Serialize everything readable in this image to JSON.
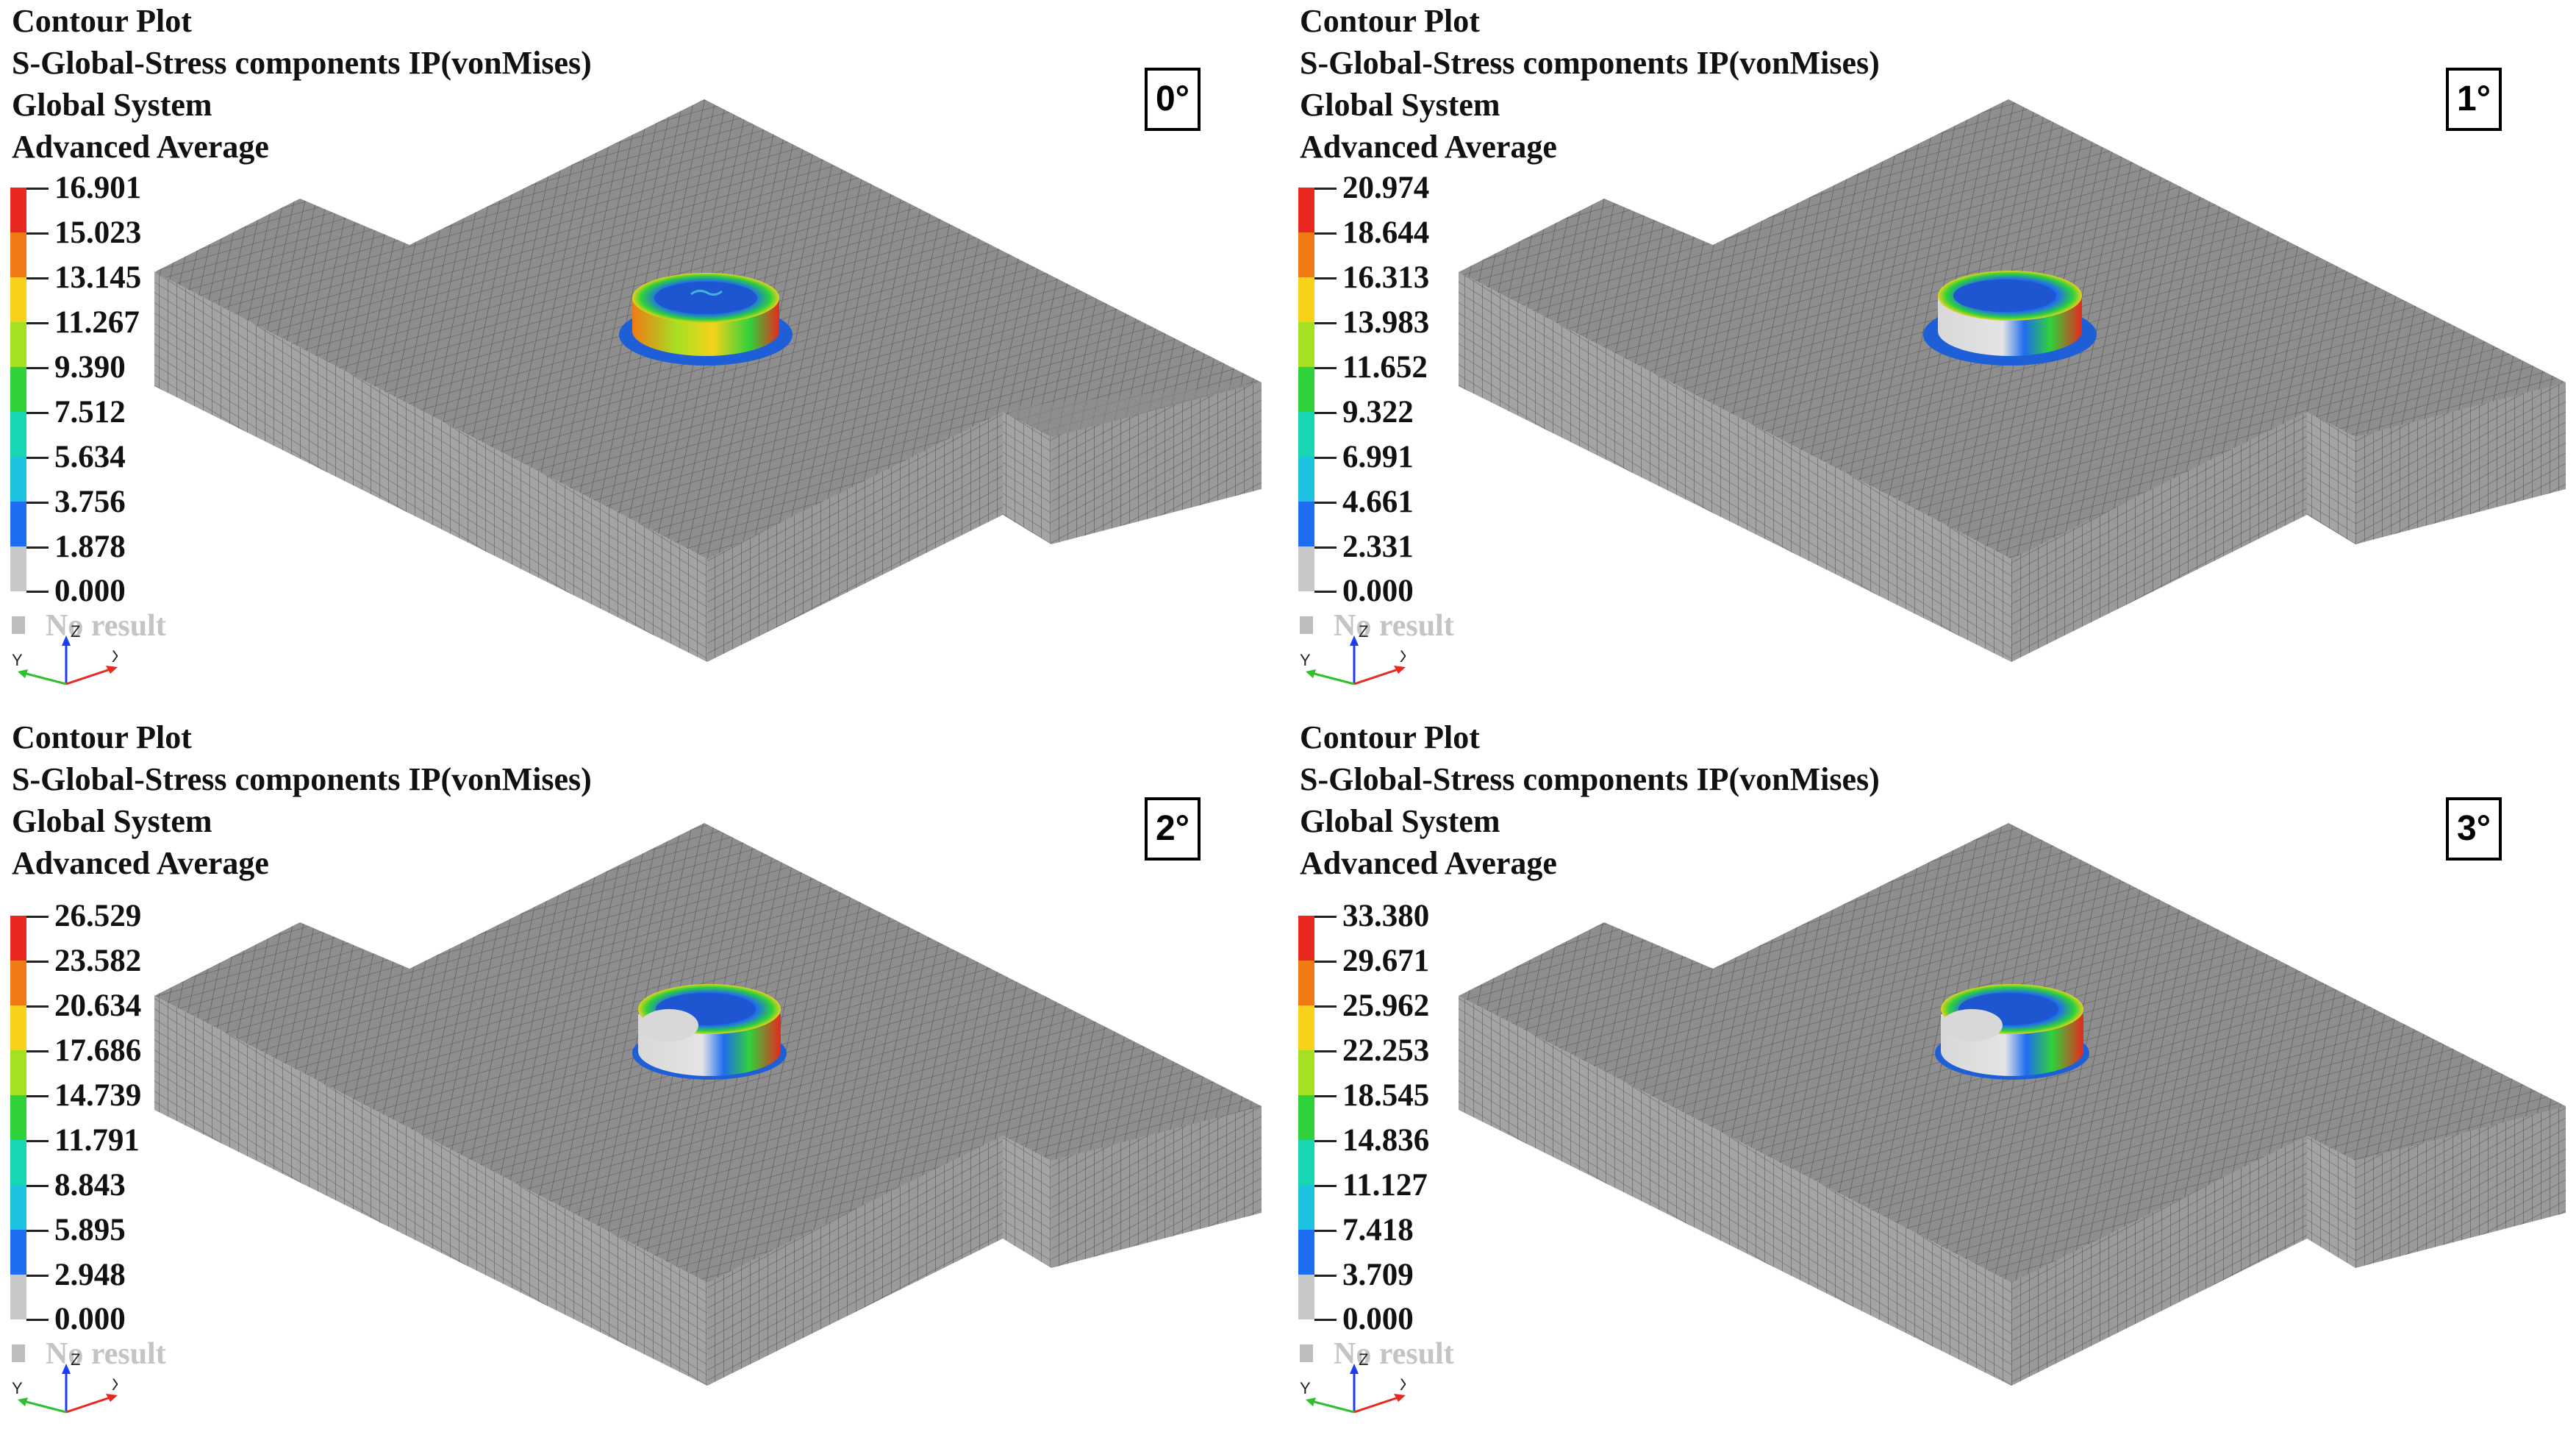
{
  "panels": [
    {
      "header": [
        "Contour Plot",
        "S-Global-Stress components IP(vonMises)",
        "Global System",
        "Advanced Average"
      ],
      "angle": "0°",
      "legend": [
        "16.901",
        "15.023",
        "13.145",
        "11.267",
        "9.390",
        "7.512",
        "5.634",
        "3.756",
        "1.878",
        "0.000"
      ],
      "no_result": "No result",
      "axes": {
        "x": "X",
        "y": "Y",
        "z": "Z"
      }
    },
    {
      "header": [
        "Contour Plot",
        "S-Global-Stress components IP(vonMises)",
        "Global System",
        "Advanced Average"
      ],
      "angle": "1°",
      "legend": [
        "20.974",
        "18.644",
        "16.313",
        "13.983",
        "11.652",
        "9.322",
        "6.991",
        "4.661",
        "2.331",
        "0.000"
      ],
      "no_result": "No result",
      "axes": {
        "x": "X",
        "y": "Y",
        "z": "Z"
      }
    },
    {
      "header": [
        "Contour Plot",
        "S-Global-Stress components IP(vonMises)",
        "Global System",
        "Advanced Average"
      ],
      "angle": "2°",
      "legend": [
        "26.529",
        "23.582",
        "20.634",
        "17.686",
        "14.739",
        "11.791",
        "8.843",
        "5.895",
        "2.948",
        "0.000"
      ],
      "no_result": "No result",
      "axes": {
        "x": "X",
        "y": "Y",
        "z": "Z"
      }
    },
    {
      "header": [
        "Contour Plot",
        "S-Global-Stress components IP(vonMises)",
        "Global System",
        "Advanced Average"
      ],
      "angle": "3°",
      "legend": [
        "33.380",
        "29.671",
        "25.962",
        "22.253",
        "18.545",
        "14.836",
        "11.127",
        "7.418",
        "3.709",
        "0.000"
      ],
      "no_result": "No result",
      "axes": {
        "x": "X",
        "y": "Y",
        "z": "Z"
      }
    }
  ],
  "legend_colors": [
    "#e8281e",
    "#f07a14",
    "#f6d21a",
    "#a6e023",
    "#2fd23a",
    "#16d6b4",
    "#1cc2e0",
    "#1e6cf0",
    "#c8c8c8"
  ],
  "mesh_colors": {
    "top": "#8e8e8e",
    "left": "#a3a3a3",
    "right": "#9a9a9a",
    "line": "#5e5e5e"
  }
}
